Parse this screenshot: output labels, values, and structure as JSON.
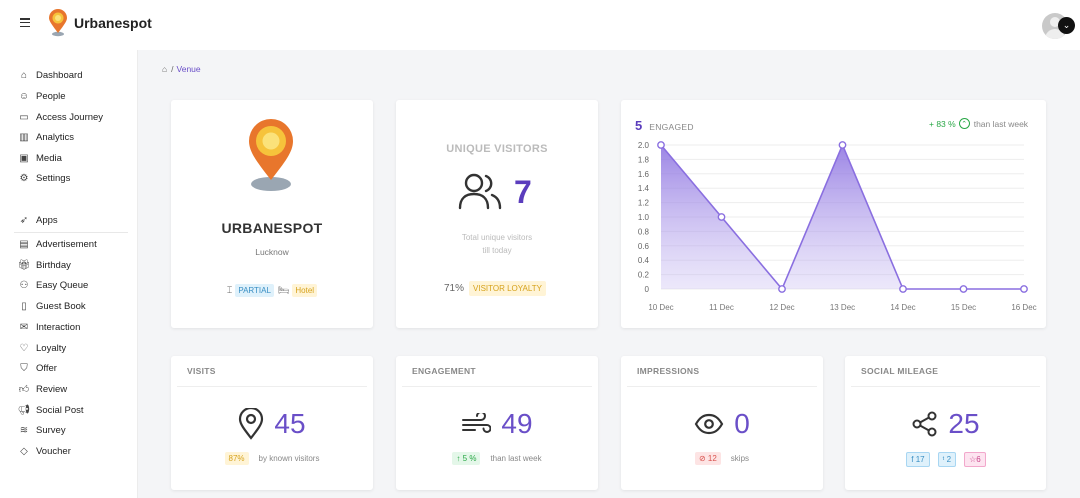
{
  "app": {
    "name": "Urbanespot"
  },
  "sidebar": {
    "items": [
      {
        "label": "Dashboard",
        "icon": "home-icon"
      },
      {
        "label": "People",
        "icon": "user-icon"
      },
      {
        "label": "Access Journey",
        "icon": "laptop-icon"
      },
      {
        "label": "Analytics",
        "icon": "bar-chart-icon"
      },
      {
        "label": "Media",
        "icon": "image-icon"
      },
      {
        "label": "Settings",
        "icon": "gear-icon"
      },
      {
        "label": "Apps",
        "icon": "rocket-icon"
      },
      {
        "label": "Advertisement",
        "icon": "billboard-icon"
      },
      {
        "label": "Birthday",
        "icon": "gift-icon"
      },
      {
        "label": "Easy Queue",
        "icon": "users-icon"
      },
      {
        "label": "Guest Book",
        "icon": "book-icon"
      },
      {
        "label": "Interaction",
        "icon": "mail-icon"
      },
      {
        "label": "Loyalty",
        "icon": "heart-icon"
      },
      {
        "label": "Offer",
        "icon": "offer-icon"
      },
      {
        "label": "Review",
        "icon": "thumbs-up-icon"
      },
      {
        "label": "Social Post",
        "icon": "megaphone-icon"
      },
      {
        "label": "Survey",
        "icon": "layers-icon"
      },
      {
        "label": "Voucher",
        "icon": "tag-icon"
      }
    ]
  },
  "breadcrumb": {
    "separator": "/",
    "current": "Venue"
  },
  "venue": {
    "name": "URBANESPOT",
    "city": "Lucknow",
    "wifi_status": "PARTIAL",
    "type": "Hotel"
  },
  "unique_visitors": {
    "title": "UNIQUE VISITORS",
    "count": "7",
    "desc_line1": "Total unique visitors",
    "desc_line2": "till today",
    "loyalty_pct": "71%",
    "loyalty_label": "VISITOR LOYALTY"
  },
  "engaged": {
    "count": "5",
    "label": "ENGAGED",
    "trend": "+ 83 %",
    "trend_suffix": "than last week"
  },
  "chart_data": {
    "type": "area",
    "x": [
      "10 Dec",
      "11 Dec",
      "12 Dec",
      "13 Dec",
      "14 Dec",
      "15 Dec",
      "16 Dec"
    ],
    "series": [
      {
        "values": [
          2,
          1,
          0,
          2,
          0,
          0,
          0
        ]
      }
    ],
    "ylim": [
      0,
      2.0
    ],
    "yticks": [
      "0",
      "0.2",
      "0.4",
      "0.6",
      "0.8",
      "1.0",
      "1.2",
      "1.4",
      "1.6",
      "1.8",
      "2.0"
    ],
    "grid": true,
    "color": "#8a6fe0"
  },
  "stats": {
    "visits": {
      "title": "VISITS",
      "value": "45",
      "pill": "87%",
      "sub": "by known visitors"
    },
    "engagement": {
      "title": "ENGAGEMENT",
      "value": "49",
      "pill": "↑ 5 %",
      "sub": "than last week"
    },
    "impressions": {
      "title": "IMPRESSIONS",
      "value": "0",
      "pill": "12",
      "sub": "skips"
    },
    "social": {
      "title": "SOCIAL MILEAGE",
      "value": "25",
      "facebook": "17",
      "twitter": "2",
      "instagram": "6"
    }
  },
  "colors": {
    "accent": "#5b3dbd",
    "positive": "#28a745",
    "warning": "#d6a21c"
  }
}
